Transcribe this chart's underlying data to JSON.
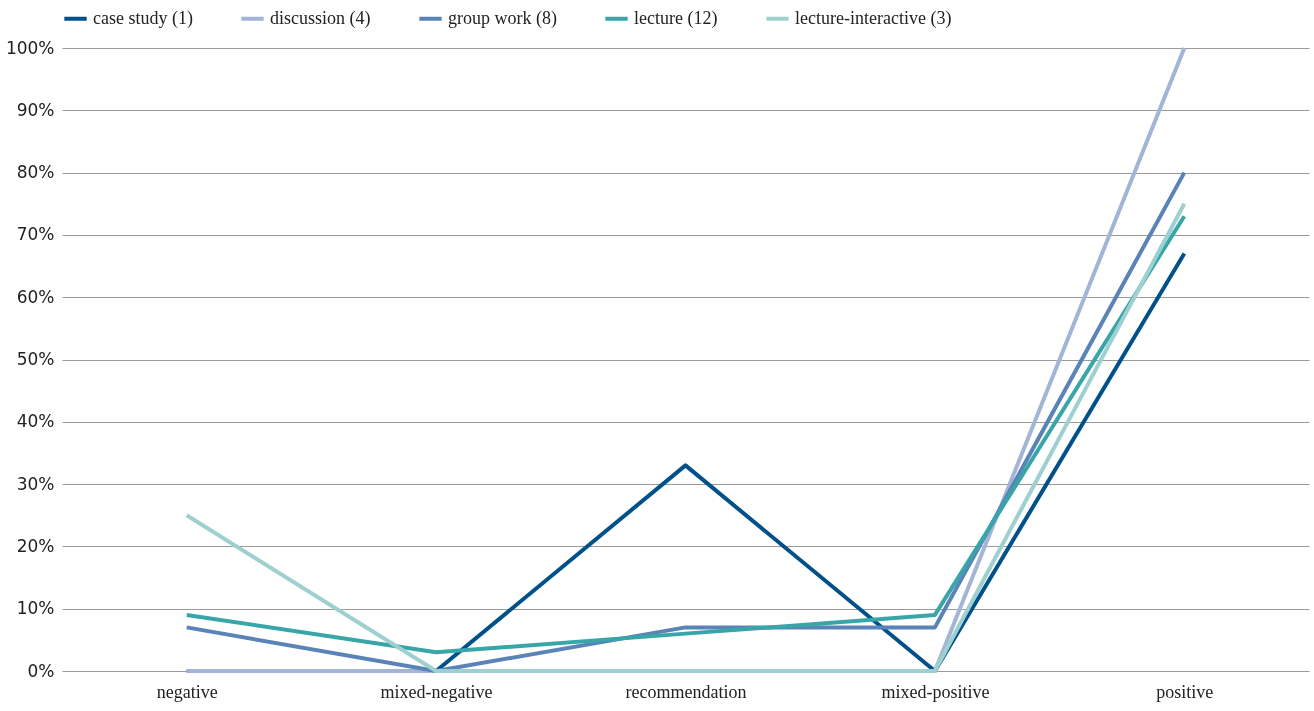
{
  "chart_data": {
    "type": "line",
    "categories": [
      "negative",
      "mixed-negative",
      "recommendation",
      "mixed-positive",
      "positive"
    ],
    "series": [
      {
        "name": "case study (1)",
        "color": "#00508a",
        "values": [
          0,
          0,
          33,
          0,
          67
        ]
      },
      {
        "name": "discussion (4)",
        "color": "#a3b5d6",
        "values": [
          0,
          0,
          0,
          0,
          100
        ]
      },
      {
        "name": "group work (8)",
        "color": "#5a83b8",
        "values": [
          7,
          0,
          7,
          7,
          80
        ]
      },
      {
        "name": "lecture (12)",
        "color": "#38a6a8",
        "values": [
          9,
          3,
          6,
          9,
          73
        ]
      },
      {
        "name": "lecture-interactive (3)",
        "color": "#9fd0d0",
        "values": [
          25,
          0,
          0,
          0,
          75
        ]
      }
    ],
    "ylim": [
      0,
      100
    ],
    "yticks": [
      {
        "value": 0,
        "label": "0%"
      },
      {
        "value": 10,
        "label": "10%"
      },
      {
        "value": 20,
        "label": "20%"
      },
      {
        "value": 30,
        "label": "30%"
      },
      {
        "value": 40,
        "label": "40%"
      },
      {
        "value": 50,
        "label": "50%"
      },
      {
        "value": 60,
        "label": "60%"
      },
      {
        "value": 70,
        "label": "70%"
      },
      {
        "value": 80,
        "label": "80%"
      },
      {
        "value": 90,
        "label": "90%"
      },
      {
        "value": 100,
        "label": "100%"
      }
    ],
    "grid": "y",
    "legend": "top",
    "marker": "none",
    "line_style": "solid"
  }
}
